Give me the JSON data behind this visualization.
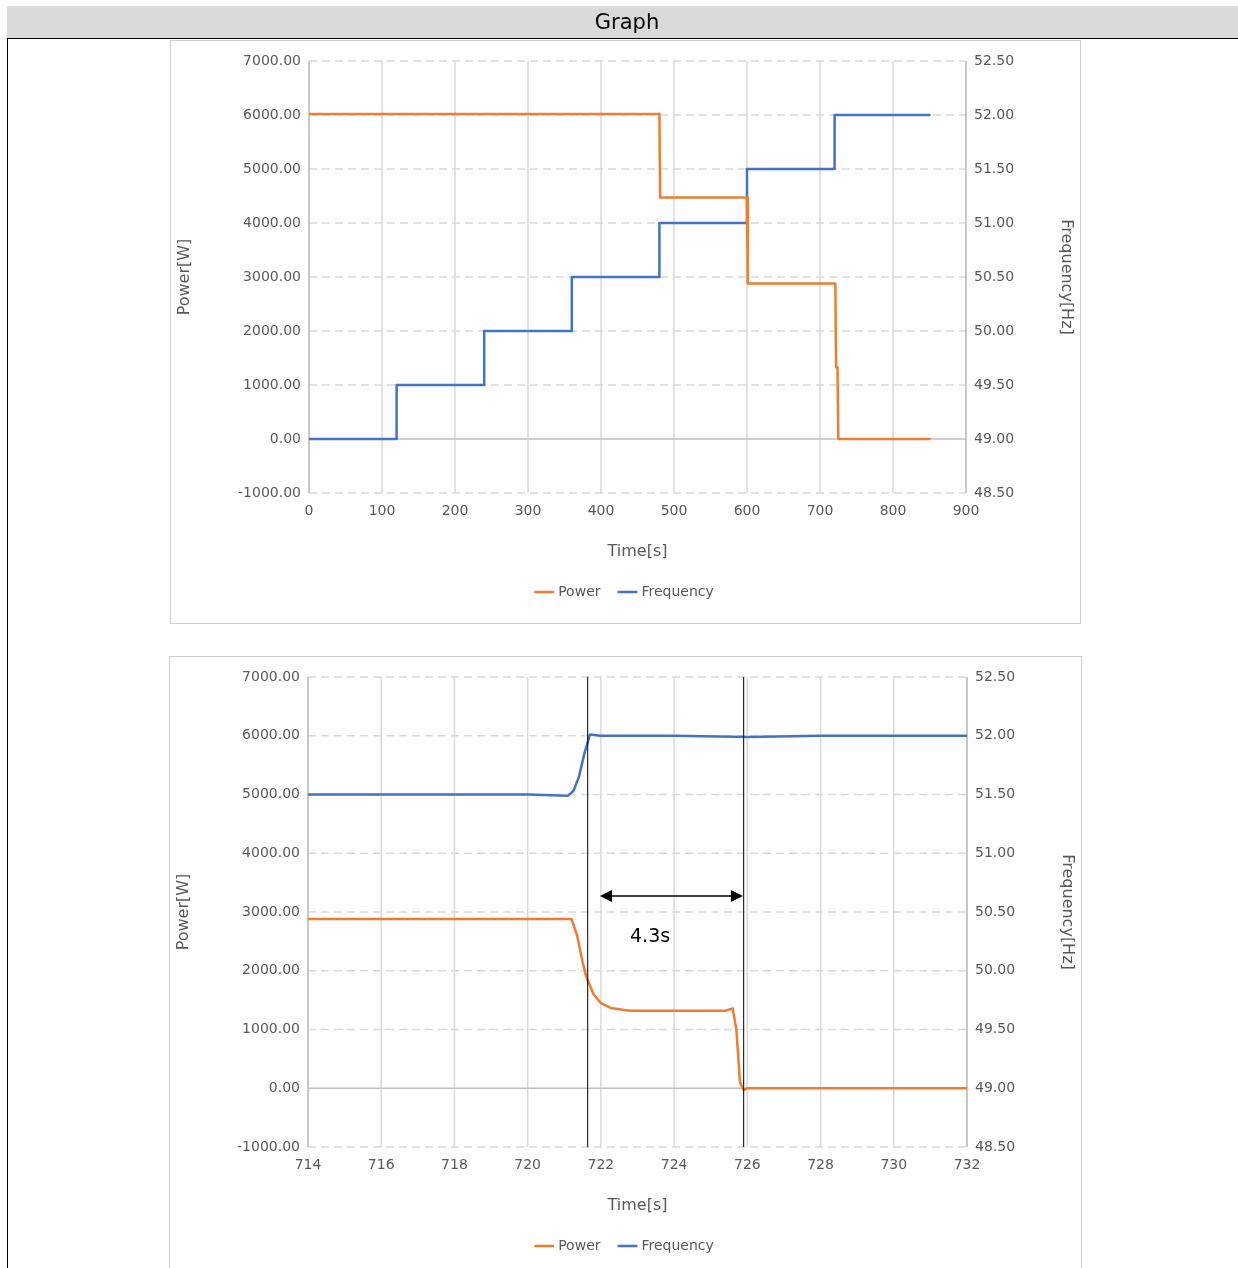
{
  "chart_data": [
    {
      "type": "line",
      "title": "Graph",
      "xlabel": "Time[s]",
      "ylabel": "Power[W]",
      "y2label": "Frequency[Hz]",
      "legend": "bottom",
      "grid": true,
      "marker": "none",
      "line_style": "solid",
      "xlim": [
        0,
        900
      ],
      "xticks": [
        0,
        100,
        200,
        300,
        400,
        500,
        600,
        700,
        800,
        900
      ],
      "ylim": [
        -1000,
        7000
      ],
      "yticks": [
        {
          "value": -1000,
          "label": "-1000.00"
        },
        {
          "value": 0,
          "label": "0.00"
        },
        {
          "value": 1000,
          "label": "1000.00"
        },
        {
          "value": 2000,
          "label": "2000.00"
        },
        {
          "value": 3000,
          "label": "3000.00"
        },
        {
          "value": 4000,
          "label": "4000.00"
        },
        {
          "value": 5000,
          "label": "5000.00"
        },
        {
          "value": 6000,
          "label": "6000.00"
        },
        {
          "value": 7000,
          "label": "7000.00"
        }
      ],
      "y2lim": [
        48.5,
        52.5
      ],
      "y2ticks": [
        {
          "value": 48.5,
          "label": "48.50"
        },
        {
          "value": 49,
          "label": "49.00"
        },
        {
          "value": 49.5,
          "label": "49.50"
        },
        {
          "value": 50,
          "label": "50.00"
        },
        {
          "value": 50.5,
          "label": "50.50"
        },
        {
          "value": 51,
          "label": "51.00"
        },
        {
          "value": 51.5,
          "label": "51.50"
        },
        {
          "value": 52,
          "label": "52.00"
        },
        {
          "value": 52.5,
          "label": "52.50"
        }
      ],
      "series": [
        {
          "name": "Power",
          "color": "#ed7d31",
          "x": [
            0,
            480,
            481,
            600,
            601,
            721,
            722,
            724,
            725,
            850
          ],
          "values": [
            6020,
            6020,
            4470,
            4470,
            2880,
            2880,
            1330,
            1330,
            0,
            0
          ]
        },
        {
          "name": "Frequency",
          "color": "#4472c4",
          "axis": "y2",
          "x": [
            0,
            120,
            120,
            240,
            240,
            360,
            360,
            480,
            480,
            600,
            600,
            720,
            720,
            850
          ],
          "values": [
            49,
            49,
            49.5,
            49.5,
            50,
            50,
            50.5,
            50.5,
            51,
            51,
            51.5,
            51.5,
            52,
            52
          ]
        }
      ]
    },
    {
      "type": "line",
      "xlabel": "Time[s]",
      "ylabel": "Power[W]",
      "y2label": "Frequency[Hz]",
      "legend": "bottom",
      "grid": true,
      "marker": "none",
      "line_style": "solid",
      "xlim": [
        714,
        732
      ],
      "xticks": [
        714,
        716,
        718,
        720,
        722,
        724,
        726,
        728,
        730,
        732
      ],
      "ylim": [
        -1000,
        7000
      ],
      "yticks": [
        {
          "value": -1000,
          "label": "-1000.00"
        },
        {
          "value": 0,
          "label": "0.00"
        },
        {
          "value": 1000,
          "label": "1000.00"
        },
        {
          "value": 2000,
          "label": "2000.00"
        },
        {
          "value": 3000,
          "label": "3000.00"
        },
        {
          "value": 4000,
          "label": "4000.00"
        },
        {
          "value": 5000,
          "label": "5000.00"
        },
        {
          "value": 6000,
          "label": "6000.00"
        },
        {
          "value": 7000,
          "label": "7000.00"
        }
      ],
      "y2lim": [
        48.5,
        52.5
      ],
      "y2ticks": [
        {
          "value": 48.5,
          "label": "48.50"
        },
        {
          "value": 49,
          "label": "49.00"
        },
        {
          "value": 49.5,
          "label": "49.50"
        },
        {
          "value": 50,
          "label": "50.00"
        },
        {
          "value": 50.5,
          "label": "50.50"
        },
        {
          "value": 51,
          "label": "51.00"
        },
        {
          "value": 51.5,
          "label": "51.50"
        },
        {
          "value": 52,
          "label": "52.00"
        },
        {
          "value": 52.5,
          "label": "52.50"
        }
      ],
      "ref_lines": [
        {
          "axis": "x",
          "value": 721.64,
          "color": "#000000"
        },
        {
          "axis": "x",
          "value": 725.9,
          "color": "#000000"
        }
      ],
      "annotations": [
        "4.3s"
      ],
      "series": [
        {
          "name": "Power",
          "color": "#ed7d31",
          "x": [
            714,
            716,
            718,
            720,
            721.2,
            721.35,
            721.5,
            721.6,
            721.8,
            722,
            722.3,
            722.8,
            724,
            725.4,
            725.6,
            725.7,
            725.8,
            725.9,
            726,
            728,
            730,
            732
          ],
          "values": [
            2880,
            2880,
            2880,
            2880,
            2880,
            2600,
            2150,
            1900,
            1600,
            1450,
            1360,
            1320,
            1320,
            1320,
            1360,
            1000,
            100,
            -30,
            0,
            0,
            0,
            0
          ]
        },
        {
          "name": "Frequency",
          "color": "#4472c4",
          "axis": "y2",
          "x": [
            714,
            716,
            718,
            720,
            721.1,
            721.25,
            721.4,
            721.55,
            721.7,
            722,
            724,
            726,
            728,
            730,
            732
          ],
          "values": [
            51.5,
            51.5,
            51.5,
            51.5,
            51.49,
            51.53,
            51.65,
            51.85,
            52.01,
            52,
            52,
            51.99,
            52,
            52,
            52
          ]
        }
      ]
    }
  ]
}
